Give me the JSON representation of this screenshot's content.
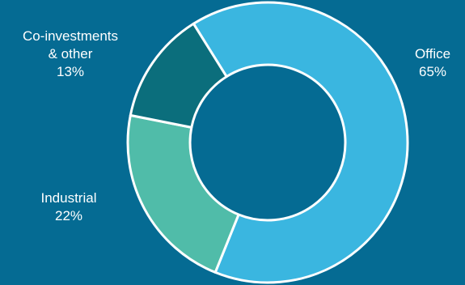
{
  "background_color": "#056b93",
  "chart_data": {
    "type": "pie",
    "variant": "donut",
    "title": "",
    "slices": [
      {
        "label": "Office",
        "value": 65,
        "value_label": "65%",
        "color": "#3ab6e0"
      },
      {
        "label": "Industrial",
        "value": 22,
        "value_label": "22%",
        "color": "#50bca9"
      },
      {
        "label_lines": [
          "Co-investments",
          "& other"
        ],
        "value": 13,
        "value_label": "13%",
        "color": "#0b6e7c"
      }
    ],
    "start_angle_deg": -32,
    "direction": "clockwise",
    "separator_color": "#ffffff",
    "legend": "none (direct labels)"
  }
}
